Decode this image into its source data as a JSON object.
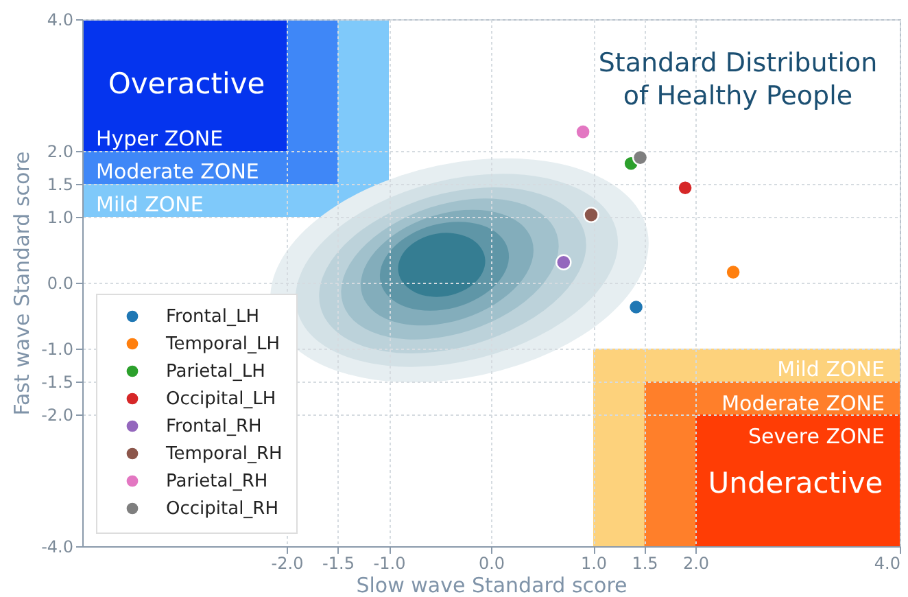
{
  "chart_data": {
    "type": "scatter",
    "title": "Standard Distribution\nof Healthy People",
    "xlabel": "Slow wave Standard score",
    "ylabel": "Fast wave Standard score",
    "xlim": [
      -4,
      4
    ],
    "ylim": [
      -4,
      4
    ],
    "xticks": [
      {
        "value": -2,
        "label": "-2.0"
      },
      {
        "value": -1.5,
        "label": "-1.5"
      },
      {
        "value": -1,
        "label": "-1.0"
      },
      {
        "value": 0,
        "label": "0.0"
      },
      {
        "value": 1,
        "label": "1.0"
      },
      {
        "value": 1.5,
        "label": "1.5"
      },
      {
        "value": 2,
        "label": "2.0"
      },
      {
        "value": 4,
        "label": "4.0"
      }
    ],
    "yticks": [
      {
        "value": -4,
        "label": "-4.0"
      },
      {
        "value": -2,
        "label": "-2.0"
      },
      {
        "value": -1.5,
        "label": "-1.5"
      },
      {
        "value": -1,
        "label": "-1.0"
      },
      {
        "value": 0,
        "label": "0.0"
      },
      {
        "value": 1,
        "label": "1.0"
      },
      {
        "value": 1.5,
        "label": "1.5"
      },
      {
        "value": 2,
        "label": "2.0"
      },
      {
        "value": 4,
        "label": "4.0"
      }
    ],
    "grid": true,
    "legend": "bottom left",
    "marker": "circle",
    "series": [
      {
        "name": "Frontal_LH",
        "color": "#1f77b4",
        "x": [
          1.42
        ],
        "values": [
          -0.37
        ]
      },
      {
        "name": "Temporal_LH",
        "color": "#ff7f0e",
        "x": [
          2.37
        ],
        "values": [
          0.16
        ]
      },
      {
        "name": "Parietal_LH",
        "color": "#2ca02c",
        "x": [
          1.37
        ],
        "values": [
          1.81
        ]
      },
      {
        "name": "Occipital_LH",
        "color": "#d62728",
        "x": [
          1.9
        ],
        "values": [
          1.44
        ]
      },
      {
        "name": "Frontal_RH",
        "color": "#9467bd",
        "x": [
          0.71
        ],
        "values": [
          0.31
        ]
      },
      {
        "name": "Temporal_RH",
        "color": "#8c564b",
        "x": [
          0.98
        ],
        "values": [
          1.03
        ]
      },
      {
        "name": "Parietal_RH",
        "color": "#e377c2",
        "x": [
          0.9
        ],
        "values": [
          2.29
        ]
      },
      {
        "name": "Occipital_RH",
        "color": "#7f7f7f",
        "x": [
          1.46
        ],
        "values": [
          1.9
        ]
      }
    ],
    "annotations": [
      "Overactive",
      "Hyper ZONE",
      "Moderate ZONE",
      "Mild ZONE",
      "Mild ZONE",
      "Moderate ZONE",
      "Severe ZONE",
      "Underactive"
    ]
  }
}
